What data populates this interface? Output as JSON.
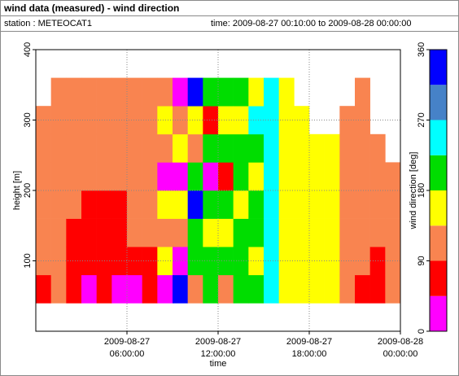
{
  "chart_data": {
    "type": "heatmap",
    "title": "wind data (measured) - wind direction",
    "station": "station : METEOCAT1",
    "time_range": "time: 2009-08-27 00:10:00 to 2009-08-28 00:00:00",
    "x_label": "time",
    "y_label": "height [m]",
    "colorbar_label": "wind direction [deg]",
    "xlim": [
      "2009-08-27 00:00:00",
      "2009-08-28 00:00:00"
    ],
    "xticks": [
      {
        "value": "2009-08-27 06:00:00",
        "date": "2009-08-27",
        "time": "06:00:00"
      },
      {
        "value": "2009-08-27 12:00:00",
        "date": "2009-08-27",
        "time": "12:00:00"
      },
      {
        "value": "2009-08-27 18:00:00",
        "date": "2009-08-27",
        "time": "18:00:00"
      },
      {
        "value": "2009-08-28 00:00:00",
        "date": "2009-08-28",
        "time": "00:00:00"
      }
    ],
    "ylim": [
      0,
      400
    ],
    "yticks": [
      100,
      200,
      300,
      400
    ],
    "grid": true,
    "x_edges": [
      "2009-08-27 00:00:00",
      "2009-08-27 01:00:00",
      "2009-08-27 02:00:00",
      "2009-08-27 03:00:00",
      "2009-08-27 04:00:00",
      "2009-08-27 05:00:00",
      "2009-08-27 06:00:00",
      "2009-08-27 07:00:00",
      "2009-08-27 08:00:00",
      "2009-08-27 09:00:00",
      "2009-08-27 10:00:00",
      "2009-08-27 11:00:00",
      "2009-08-27 12:00:00",
      "2009-08-27 13:00:00",
      "2009-08-27 14:00:00",
      "2009-08-27 15:00:00",
      "2009-08-27 16:00:00",
      "2009-08-27 17:00:00",
      "2009-08-27 18:00:00",
      "2009-08-27 19:00:00",
      "2009-08-27 20:00:00",
      "2009-08-27 21:00:00",
      "2009-08-27 22:00:00",
      "2009-08-27 23:00:00",
      "2009-08-28 00:00:00"
    ],
    "y_edges": [
      40,
      80,
      120,
      160,
      200,
      240,
      280,
      320,
      360
    ],
    "z": [
      [
        67,
        112,
        112,
        112,
        112,
        112,
        112,
        null
      ],
      [
        112,
        112,
        112,
        112,
        112,
        112,
        112,
        112
      ],
      [
        67,
        67,
        67,
        112,
        112,
        112,
        112,
        112
      ],
      [
        22,
        67,
        67,
        67,
        112,
        112,
        112,
        112
      ],
      [
        67,
        67,
        67,
        67,
        112,
        112,
        112,
        112
      ],
      [
        22,
        67,
        67,
        67,
        112,
        112,
        112,
        112
      ],
      [
        22,
        67,
        112,
        112,
        112,
        112,
        112,
        112
      ],
      [
        67,
        67,
        112,
        112,
        112,
        112,
        112,
        112
      ],
      [
        22,
        157,
        112,
        157,
        22,
        112,
        157,
        112
      ],
      [
        337,
        22,
        112,
        157,
        22,
        157,
        112,
        22
      ],
      [
        112,
        202,
        202,
        337,
        202,
        112,
        157,
        337
      ],
      [
        202,
        202,
        157,
        202,
        22,
        202,
        67,
        202
      ],
      [
        112,
        202,
        157,
        202,
        67,
        202,
        157,
        202
      ],
      [
        202,
        202,
        202,
        157,
        202,
        202,
        157,
        202
      ],
      [
        202,
        157,
        202,
        202,
        157,
        202,
        247,
        157
      ],
      [
        247,
        247,
        247,
        247,
        247,
        247,
        247,
        247
      ],
      [
        157,
        157,
        157,
        157,
        157,
        157,
        157,
        157
      ],
      [
        157,
        157,
        157,
        157,
        157,
        157,
        157,
        null
      ],
      [
        157,
        157,
        157,
        157,
        157,
        157,
        null,
        null
      ],
      [
        157,
        157,
        157,
        157,
        157,
        157,
        null,
        null
      ],
      [
        112,
        112,
        112,
        112,
        112,
        112,
        112,
        null
      ],
      [
        67,
        112,
        112,
        112,
        112,
        112,
        112,
        112
      ],
      [
        67,
        67,
        112,
        112,
        112,
        112,
        null,
        null
      ],
      [
        112,
        112,
        112,
        112,
        112,
        null,
        null,
        null
      ]
    ],
    "levels": [
      0,
      45,
      90,
      135,
      180,
      225,
      270,
      315,
      360
    ],
    "colors": [
      "#ff00ff",
      "#ff0000",
      "#f98450",
      "#ffff00",
      "#00dd00",
      "#00ffff",
      "#4682c8",
      "#0000ff"
    ],
    "cticks": [
      0,
      90,
      180,
      270,
      360
    ]
  }
}
